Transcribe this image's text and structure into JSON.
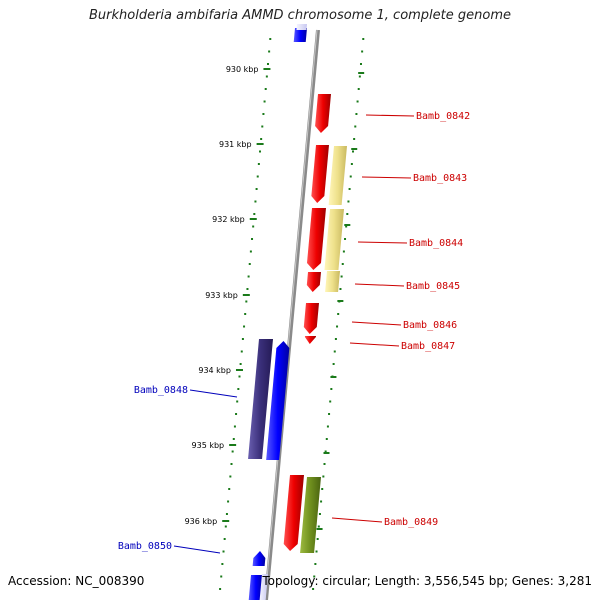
{
  "title": "Burkholderia ambifaria AMMD chromosome 1, complete genome",
  "footer": {
    "accession": "Accession: NC_008390",
    "summary": "Topology: circular; Length: 3,556,545 bp; Genes: 3,281"
  },
  "colors": {
    "forward": "#e60000",
    "reverse": "#0000ee",
    "reverse_dark": "#3a2f7a",
    "pale": "#eee08a",
    "olive": "#6f8f1e",
    "tick": "#1a7a1a",
    "backbone": "#8a8a8a",
    "label_forward": "#cc0000",
    "label_reverse": "#0000bb"
  },
  "axis": {
    "ticks": [
      "930 kbp",
      "931 kbp",
      "932 kbp",
      "933 kbp",
      "934 kbp",
      "935 kbp",
      "936 kbp"
    ]
  },
  "genes": {
    "labeled": [
      {
        "name": "Bamb_0842",
        "strand": "forward"
      },
      {
        "name": "Bamb_0843",
        "strand": "forward"
      },
      {
        "name": "Bamb_0844",
        "strand": "forward"
      },
      {
        "name": "Bamb_0845",
        "strand": "forward"
      },
      {
        "name": "Bamb_0846",
        "strand": "forward"
      },
      {
        "name": "Bamb_0847",
        "strand": "forward"
      },
      {
        "name": "Bamb_0848",
        "strand": "reverse"
      },
      {
        "name": "Bamb_0849",
        "strand": "forward"
      },
      {
        "name": "Bamb_0850",
        "strand": "reverse"
      }
    ]
  }
}
